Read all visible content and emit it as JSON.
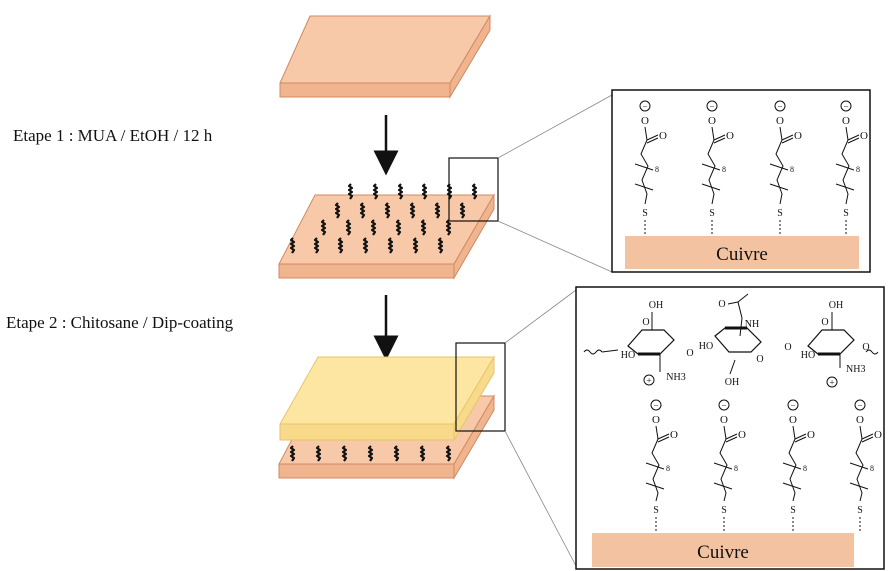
{
  "steps": [
    {
      "label": "Etape 1 : MUA / EtOH / 12 h"
    },
    {
      "label": "Etape 2 : Chitosane / Dip-coating"
    }
  ],
  "substrate_label": "Cuivre",
  "chem": {
    "charge_minus": "−",
    "charge_plus": "+",
    "atom_O": "O",
    "atom_S": "S",
    "subscript_8": "8",
    "group_OH": "OH",
    "group_HO": "HO",
    "group_NH": "NH",
    "group_NH3": "NH3"
  },
  "colors": {
    "copper_top": "#f8c9a8",
    "copper_side": "#f0b48e",
    "copper_edge": "#d08a63",
    "chitosan_top": "#fde6a2",
    "chitosan_side": "#f9d98a",
    "ink": "#111111"
  }
}
